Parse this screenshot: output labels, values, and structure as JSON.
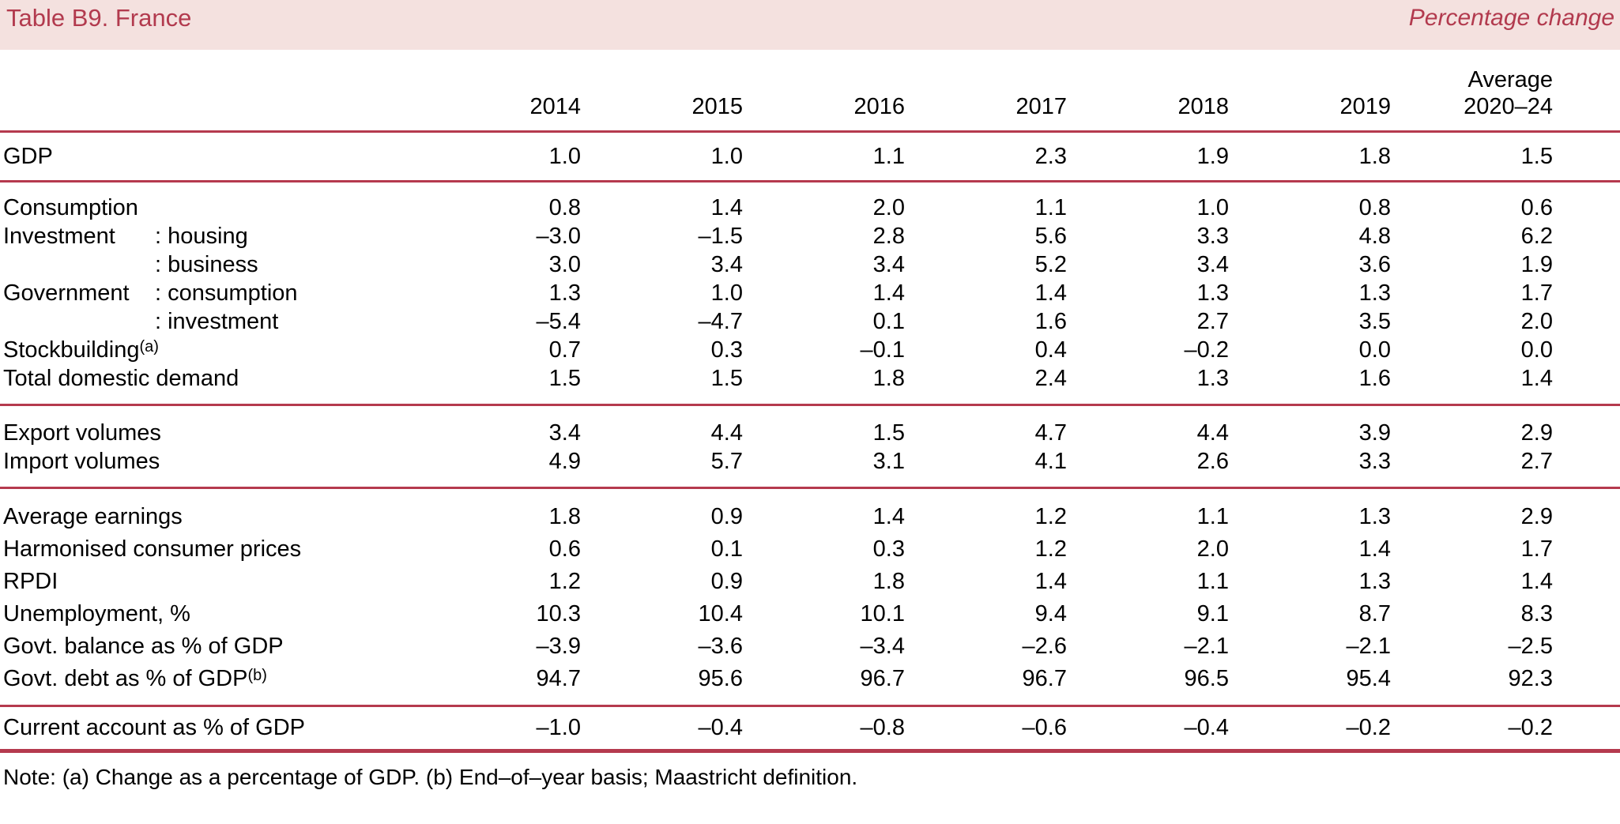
{
  "header": {
    "title": "Table B9. France",
    "subtitle": "Percentage change"
  },
  "columns": [
    "2014",
    "2015",
    "2016",
    "2017",
    "2018",
    "2019"
  ],
  "avg_column": {
    "top": "Average",
    "bottom": "2020–24"
  },
  "sections": [
    {
      "rows": [
        {
          "label": "GDP",
          "values": [
            "1.0",
            "1.0",
            "1.1",
            "2.3",
            "1.9",
            "1.8",
            "1.5"
          ]
        }
      ]
    },
    {
      "rows": [
        {
          "label": "Consumption",
          "values": [
            "0.8",
            "1.4",
            "2.0",
            "1.1",
            "1.0",
            "0.8",
            "0.6"
          ]
        },
        {
          "prefix": "Investment",
          "label": ": housing",
          "values": [
            "–3.0",
            "–1.5",
            "2.8",
            "5.6",
            "3.3",
            "4.8",
            "6.2"
          ]
        },
        {
          "prefix": "",
          "label": ": business",
          "values": [
            "3.0",
            "3.4",
            "3.4",
            "5.2",
            "3.4",
            "3.6",
            "1.9"
          ]
        },
        {
          "prefix": "Government",
          "label": ": consumption",
          "values": [
            "1.3",
            "1.0",
            "1.4",
            "1.4",
            "1.3",
            "1.3",
            "1.7"
          ]
        },
        {
          "prefix": "",
          "label": ": investment",
          "values": [
            "–5.4",
            "–4.7",
            "0.1",
            "1.6",
            "2.7",
            "3.5",
            "2.0"
          ]
        },
        {
          "label": "Stockbuilding",
          "sup": "(a)",
          "values": [
            "0.7",
            "0.3",
            "–0.1",
            "0.4",
            "–0.2",
            "0.0",
            "0.0"
          ]
        },
        {
          "label": "Total domestic demand",
          "values": [
            "1.5",
            "1.5",
            "1.8",
            "2.4",
            "1.3",
            "1.6",
            "1.4"
          ]
        }
      ]
    },
    {
      "rows": [
        {
          "label": "Export volumes",
          "values": [
            "3.4",
            "4.4",
            "1.5",
            "4.7",
            "4.4",
            "3.9",
            "2.9"
          ]
        },
        {
          "label": "Import volumes",
          "values": [
            "4.9",
            "5.7",
            "3.1",
            "4.1",
            "2.6",
            "3.3",
            "2.7"
          ]
        }
      ]
    },
    {
      "rows": [
        {
          "label": "Average earnings",
          "values": [
            "1.8",
            "0.9",
            "1.4",
            "1.2",
            "1.1",
            "1.3",
            "2.9"
          ]
        },
        {
          "label": "Harmonised consumer prices",
          "values": [
            "0.6",
            "0.1",
            "0.3",
            "1.2",
            "2.0",
            "1.4",
            "1.7"
          ]
        },
        {
          "label": "RPDI",
          "values": [
            "1.2",
            "0.9",
            "1.8",
            "1.4",
            "1.1",
            "1.3",
            "1.4"
          ]
        },
        {
          "label": "Unemployment, %",
          "values": [
            "10.3",
            "10.4",
            "10.1",
            "9.4",
            "9.1",
            "8.7",
            "8.3"
          ]
        },
        {
          "label": "Govt. balance as % of GDP",
          "values": [
            "–3.9",
            "–3.6",
            "–3.4",
            "–2.6",
            "–2.1",
            "–2.1",
            "–2.5"
          ]
        },
        {
          "label": "Govt. debt as % of GDP",
          "sup": "(b)",
          "values": [
            "94.7",
            "95.6",
            "96.7",
            "96.7",
            "96.5",
            "95.4",
            "92.3"
          ]
        }
      ]
    },
    {
      "rows": [
        {
          "label": "Current account as % of GDP",
          "values": [
            "–1.0",
            "–0.4",
            "–0.8",
            "–0.6",
            "–0.4",
            "–0.2",
            "–0.2"
          ]
        }
      ]
    }
  ],
  "note": "Note: (a) Change as a percentage of GDP. (b) End–of–year basis; Maastricht definition.",
  "colors": {
    "accent_text": "#b23a4e",
    "band_background": "#f4e1df",
    "rule": "#b53a4e"
  }
}
